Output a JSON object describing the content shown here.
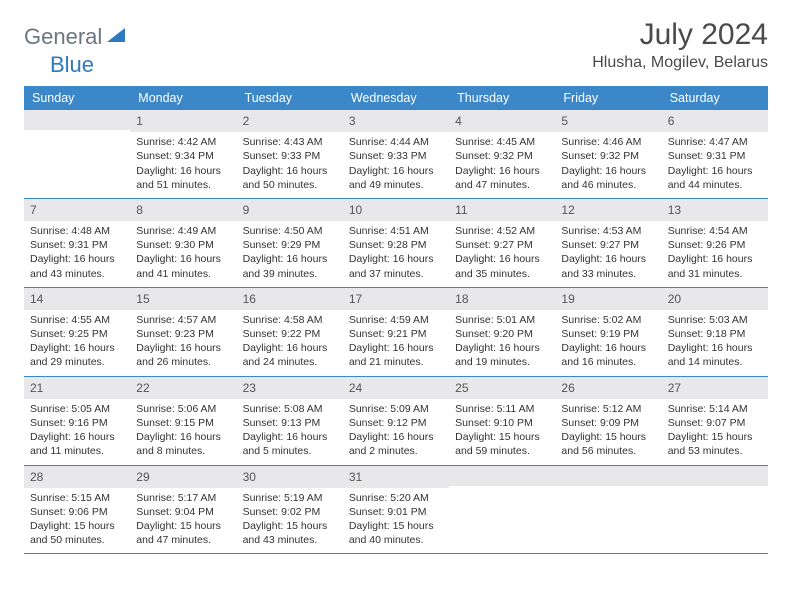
{
  "logo": {
    "gray": "General",
    "blue": "Blue"
  },
  "title": "July 2024",
  "location": "Hlusha, Mogilev, Belarus",
  "colors": {
    "headerBlue": "#3b87c8",
    "dayBarGray": "#e8e8ea",
    "borderBlue": "#3b87c8",
    "logoGray": "#6b7680",
    "logoBlue": "#2c7abf",
    "textDark": "#4a4a4a"
  },
  "dayNames": [
    "Sunday",
    "Monday",
    "Tuesday",
    "Wednesday",
    "Thursday",
    "Friday",
    "Saturday"
  ],
  "weeks": [
    [
      {
        "n": "",
        "lines": []
      },
      {
        "n": "1",
        "lines": [
          "Sunrise: 4:42 AM",
          "Sunset: 9:34 PM",
          "Daylight: 16 hours",
          "and 51 minutes."
        ]
      },
      {
        "n": "2",
        "lines": [
          "Sunrise: 4:43 AM",
          "Sunset: 9:33 PM",
          "Daylight: 16 hours",
          "and 50 minutes."
        ]
      },
      {
        "n": "3",
        "lines": [
          "Sunrise: 4:44 AM",
          "Sunset: 9:33 PM",
          "Daylight: 16 hours",
          "and 49 minutes."
        ]
      },
      {
        "n": "4",
        "lines": [
          "Sunrise: 4:45 AM",
          "Sunset: 9:32 PM",
          "Daylight: 16 hours",
          "and 47 minutes."
        ]
      },
      {
        "n": "5",
        "lines": [
          "Sunrise: 4:46 AM",
          "Sunset: 9:32 PM",
          "Daylight: 16 hours",
          "and 46 minutes."
        ]
      },
      {
        "n": "6",
        "lines": [
          "Sunrise: 4:47 AM",
          "Sunset: 9:31 PM",
          "Daylight: 16 hours",
          "and 44 minutes."
        ]
      }
    ],
    [
      {
        "n": "7",
        "lines": [
          "Sunrise: 4:48 AM",
          "Sunset: 9:31 PM",
          "Daylight: 16 hours",
          "and 43 minutes."
        ]
      },
      {
        "n": "8",
        "lines": [
          "Sunrise: 4:49 AM",
          "Sunset: 9:30 PM",
          "Daylight: 16 hours",
          "and 41 minutes."
        ]
      },
      {
        "n": "9",
        "lines": [
          "Sunrise: 4:50 AM",
          "Sunset: 9:29 PM",
          "Daylight: 16 hours",
          "and 39 minutes."
        ]
      },
      {
        "n": "10",
        "lines": [
          "Sunrise: 4:51 AM",
          "Sunset: 9:28 PM",
          "Daylight: 16 hours",
          "and 37 minutes."
        ]
      },
      {
        "n": "11",
        "lines": [
          "Sunrise: 4:52 AM",
          "Sunset: 9:27 PM",
          "Daylight: 16 hours",
          "and 35 minutes."
        ]
      },
      {
        "n": "12",
        "lines": [
          "Sunrise: 4:53 AM",
          "Sunset: 9:27 PM",
          "Daylight: 16 hours",
          "and 33 minutes."
        ]
      },
      {
        "n": "13",
        "lines": [
          "Sunrise: 4:54 AM",
          "Sunset: 9:26 PM",
          "Daylight: 16 hours",
          "and 31 minutes."
        ]
      }
    ],
    [
      {
        "n": "14",
        "lines": [
          "Sunrise: 4:55 AM",
          "Sunset: 9:25 PM",
          "Daylight: 16 hours",
          "and 29 minutes."
        ]
      },
      {
        "n": "15",
        "lines": [
          "Sunrise: 4:57 AM",
          "Sunset: 9:23 PM",
          "Daylight: 16 hours",
          "and 26 minutes."
        ]
      },
      {
        "n": "16",
        "lines": [
          "Sunrise: 4:58 AM",
          "Sunset: 9:22 PM",
          "Daylight: 16 hours",
          "and 24 minutes."
        ]
      },
      {
        "n": "17",
        "lines": [
          "Sunrise: 4:59 AM",
          "Sunset: 9:21 PM",
          "Daylight: 16 hours",
          "and 21 minutes."
        ]
      },
      {
        "n": "18",
        "lines": [
          "Sunrise: 5:01 AM",
          "Sunset: 9:20 PM",
          "Daylight: 16 hours",
          "and 19 minutes."
        ]
      },
      {
        "n": "19",
        "lines": [
          "Sunrise: 5:02 AM",
          "Sunset: 9:19 PM",
          "Daylight: 16 hours",
          "and 16 minutes."
        ]
      },
      {
        "n": "20",
        "lines": [
          "Sunrise: 5:03 AM",
          "Sunset: 9:18 PM",
          "Daylight: 16 hours",
          "and 14 minutes."
        ]
      }
    ],
    [
      {
        "n": "21",
        "lines": [
          "Sunrise: 5:05 AM",
          "Sunset: 9:16 PM",
          "Daylight: 16 hours",
          "and 11 minutes."
        ]
      },
      {
        "n": "22",
        "lines": [
          "Sunrise: 5:06 AM",
          "Sunset: 9:15 PM",
          "Daylight: 16 hours",
          "and 8 minutes."
        ]
      },
      {
        "n": "23",
        "lines": [
          "Sunrise: 5:08 AM",
          "Sunset: 9:13 PM",
          "Daylight: 16 hours",
          "and 5 minutes."
        ]
      },
      {
        "n": "24",
        "lines": [
          "Sunrise: 5:09 AM",
          "Sunset: 9:12 PM",
          "Daylight: 16 hours",
          "and 2 minutes."
        ]
      },
      {
        "n": "25",
        "lines": [
          "Sunrise: 5:11 AM",
          "Sunset: 9:10 PM",
          "Daylight: 15 hours",
          "and 59 minutes."
        ]
      },
      {
        "n": "26",
        "lines": [
          "Sunrise: 5:12 AM",
          "Sunset: 9:09 PM",
          "Daylight: 15 hours",
          "and 56 minutes."
        ]
      },
      {
        "n": "27",
        "lines": [
          "Sunrise: 5:14 AM",
          "Sunset: 9:07 PM",
          "Daylight: 15 hours",
          "and 53 minutes."
        ]
      }
    ],
    [
      {
        "n": "28",
        "lines": [
          "Sunrise: 5:15 AM",
          "Sunset: 9:06 PM",
          "Daylight: 15 hours",
          "and 50 minutes."
        ]
      },
      {
        "n": "29",
        "lines": [
          "Sunrise: 5:17 AM",
          "Sunset: 9:04 PM",
          "Daylight: 15 hours",
          "and 47 minutes."
        ]
      },
      {
        "n": "30",
        "lines": [
          "Sunrise: 5:19 AM",
          "Sunset: 9:02 PM",
          "Daylight: 15 hours",
          "and 43 minutes."
        ]
      },
      {
        "n": "31",
        "lines": [
          "Sunrise: 5:20 AM",
          "Sunset: 9:01 PM",
          "Daylight: 15 hours",
          "and 40 minutes."
        ]
      },
      {
        "n": "",
        "lines": []
      },
      {
        "n": "",
        "lines": []
      },
      {
        "n": "",
        "lines": []
      }
    ]
  ]
}
